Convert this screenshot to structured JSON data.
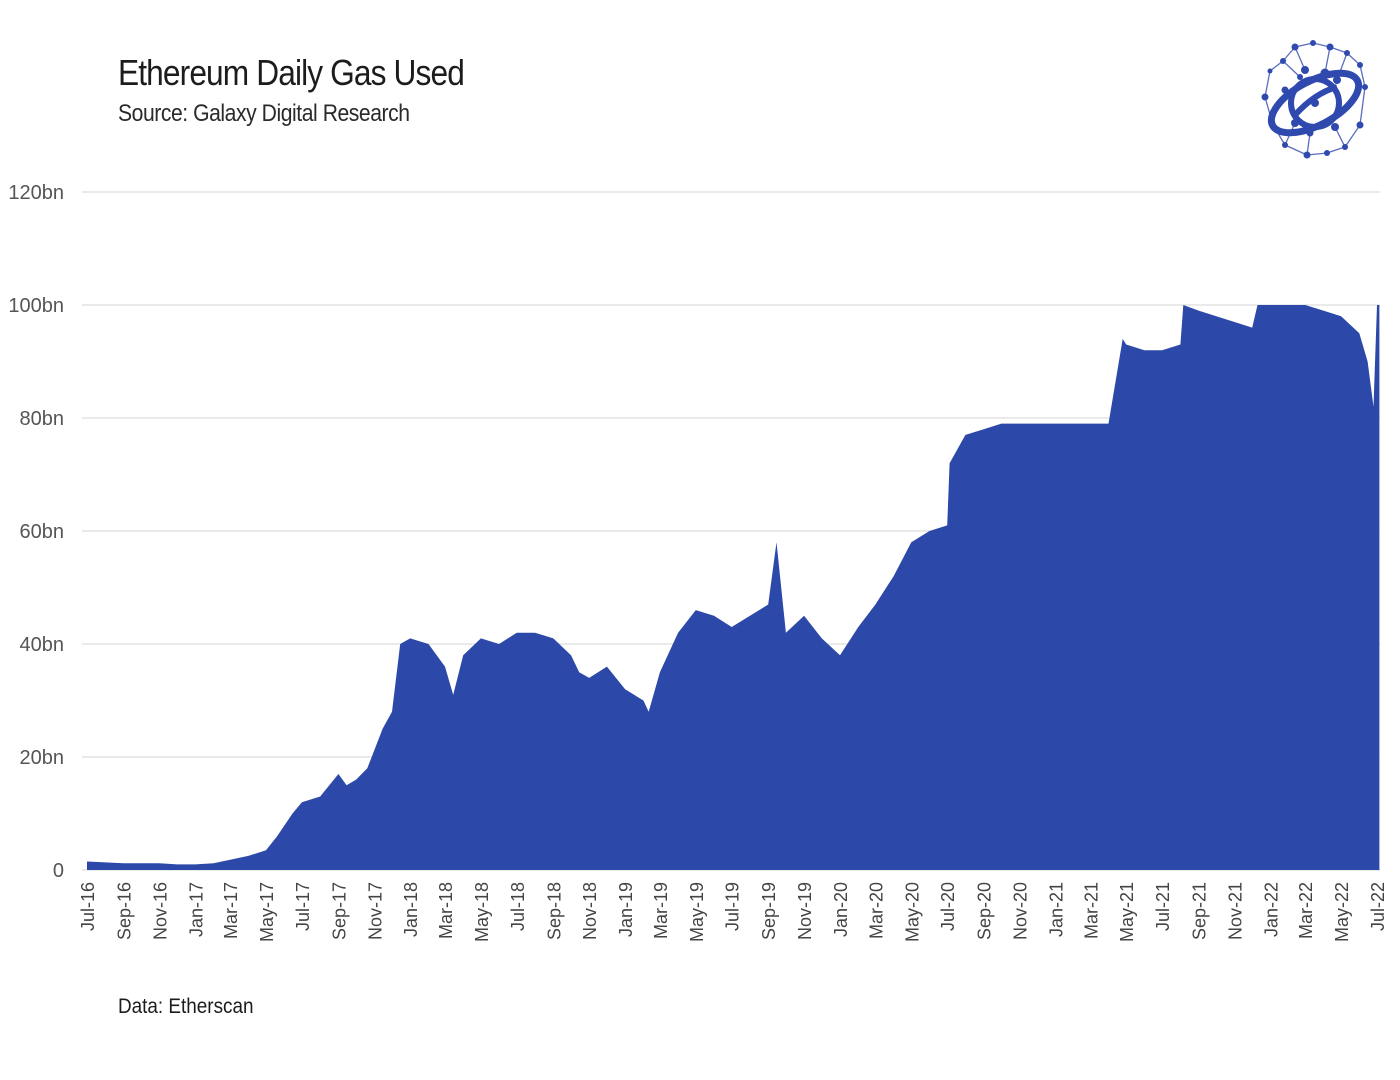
{
  "header": {
    "title": "Ethereum Daily Gas Used",
    "subtitle": "Source: Galaxy Digital Research"
  },
  "footer": {
    "note": "Data: Etherscan"
  },
  "logo": {
    "icon": "galaxy-digital-logo",
    "color": "#2f49ae"
  },
  "colors": {
    "area": "#2c48a8",
    "grid": "#dddddd"
  },
  "chart_data": {
    "type": "area",
    "title": "Ethereum Daily Gas Used",
    "subtitle": "Source: Galaxy Digital Research",
    "xlabel": "",
    "ylabel": "",
    "ylim": [
      0,
      120
    ],
    "y_unit": "bn",
    "y_ticks": [
      "0",
      "20bn",
      "40bn",
      "60bn",
      "80bn",
      "100bn",
      "120bn"
    ],
    "y_tick_values": [
      0,
      20,
      40,
      60,
      80,
      100,
      120
    ],
    "x_range": [
      "2016-07",
      "2022-07"
    ],
    "x_ticks": [
      "Jul-16",
      "Sep-16",
      "Nov-16",
      "Jan-17",
      "Mar-17",
      "May-17",
      "Jul-17",
      "Sep-17",
      "Nov-17",
      "Jan-18",
      "Mar-18",
      "May-18",
      "Jul-18",
      "Sep-18",
      "Nov-18",
      "Jan-19",
      "Mar-19",
      "May-19",
      "Jul-19",
      "Sep-19",
      "Nov-19",
      "Jan-20",
      "Mar-20",
      "May-20",
      "Jul-20",
      "Sep-20",
      "Nov-20",
      "Jan-21",
      "Mar-21",
      "May-21",
      "Jul-21",
      "Sep-21",
      "Nov-21",
      "Jan-22",
      "Mar-22",
      "May-22",
      "Jul-22"
    ],
    "grid": true,
    "legend": "none",
    "series": [
      {
        "x": [
          "2016-07-01",
          "2016-09-01",
          "2016-10-15",
          "2016-11-01",
          "2016-12-01",
          "2017-01-01",
          "2017-02-01",
          "2017-03-01",
          "2017-04-01",
          "2017-05-01",
          "2017-05-20",
          "2017-06-15",
          "2017-07-01",
          "2017-08-01",
          "2017-09-01",
          "2017-09-15",
          "2017-10-01",
          "2017-10-20",
          "2017-11-15",
          "2017-12-01",
          "2017-12-15",
          "2018-01-01",
          "2018-02-01",
          "2018-03-01",
          "2018-03-15",
          "2018-04-01",
          "2018-05-01",
          "2018-06-01",
          "2018-07-01",
          "2018-08-01",
          "2018-09-01",
          "2018-10-01",
          "2018-10-15",
          "2018-11-01",
          "2018-12-01",
          "2019-01-01",
          "2019-02-01",
          "2019-02-10",
          "2019-03-01",
          "2019-04-01",
          "2019-05-01",
          "2019-06-01",
          "2019-07-01",
          "2019-08-01",
          "2019-09-01",
          "2019-09-15",
          "2019-10-01",
          "2019-11-01",
          "2019-12-01",
          "2020-01-01",
          "2020-02-01",
          "2020-03-01",
          "2020-04-01",
          "2020-05-01",
          "2020-06-01",
          "2020-07-01",
          "2020-07-05",
          "2020-08-01",
          "2020-09-01",
          "2020-10-01",
          "2020-11-01",
          "2020-12-01",
          "2021-01-01",
          "2021-02-01",
          "2021-03-01",
          "2021-04-01",
          "2021-04-25",
          "2021-05-01",
          "2021-06-01",
          "2021-07-01",
          "2021-08-01",
          "2021-08-06",
          "2021-09-01",
          "2021-10-01",
          "2021-11-01",
          "2021-12-01",
          "2021-12-10",
          "2022-01-01",
          "2022-02-01",
          "2022-03-01",
          "2022-04-01",
          "2022-05-01",
          "2022-06-01",
          "2022-06-15",
          "2022-06-25",
          "2022-07-01",
          "2022-07-05"
        ],
        "y": [
          1.5,
          1.2,
          1.2,
          1.2,
          1.0,
          1.0,
          1.2,
          1.8,
          2.5,
          3.5,
          6,
          10,
          12,
          13,
          17,
          15,
          16,
          18,
          25,
          28,
          40,
          41,
          40,
          36,
          31,
          38,
          41,
          40,
          42,
          42,
          41,
          38,
          35,
          34,
          36,
          32,
          30,
          28,
          35,
          42,
          46,
          45,
          43,
          45,
          47,
          58,
          42,
          45,
          41,
          38,
          43,
          47,
          52,
          58,
          60,
          61,
          72,
          77,
          78,
          79,
          79,
          79,
          79,
          79,
          79,
          79,
          94,
          93,
          92,
          92,
          93,
          100,
          99,
          98,
          97,
          96,
          100,
          100,
          100,
          100,
          99,
          98,
          95,
          90,
          82,
          100,
          100
        ]
      }
    ]
  }
}
